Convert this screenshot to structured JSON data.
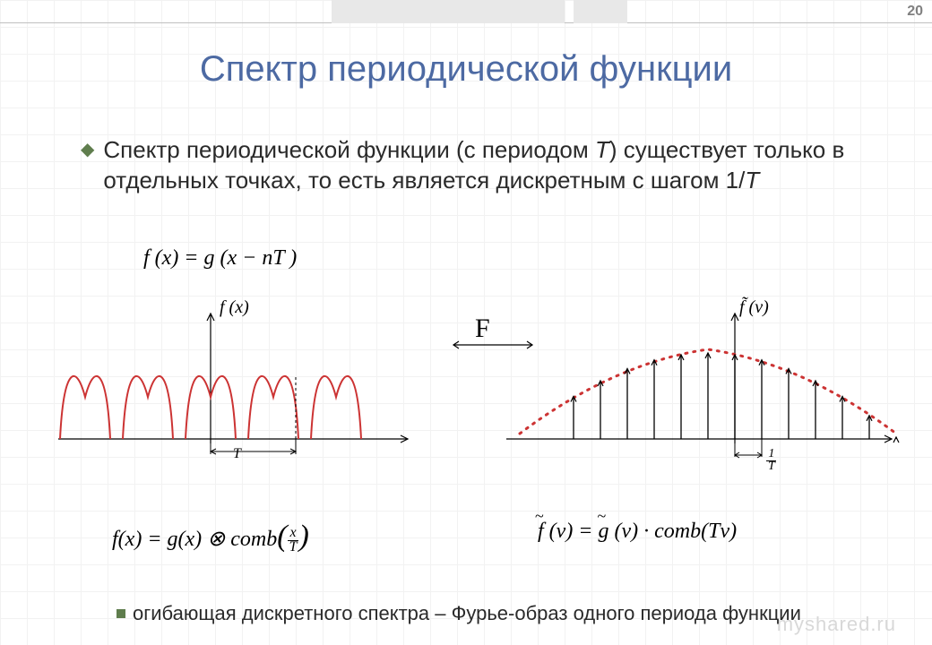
{
  "page_number": "20",
  "title": "Спектр периодической функции",
  "bullet_text_1": "Спектр периодической функции (с периодом ",
  "bullet_text_T": "T",
  "bullet_text_2": ") существует только в отдельных точках, то есть является дискретным с шагом  1/",
  "bullet_text_T2": "T",
  "top_formula": "f (x) = g (x − nT )",
  "fourier_symbol": "F",
  "left_plot": {
    "label": "f (x)",
    "T_label": "T",
    "curve_color": "#cc3333",
    "axis_color": "#000000",
    "x_range": 400,
    "baseline_y": 150,
    "y_top": 10,
    "bumps_centers": [
      35,
      105,
      175,
      245,
      315
    ],
    "bump_width": 56,
    "bump_height": 85
  },
  "right_plot": {
    "label": "f̃ (ν)",
    "oneOverT": {
      "num": "1",
      "den": "T"
    },
    "envelope_color": "#cc3333",
    "arrow_color": "#000000",
    "axis_color": "#000000",
    "x_range": 440,
    "baseline_y": 150,
    "y_top": 10,
    "envelope_peak": 100,
    "n_arrows": 13,
    "arrow_spacing": 30
  },
  "left_formula": "f (x) = g(x) ⊗ comb(x⁄T)",
  "right_formula": "f̃ (ν) = g̃(ν) · comb(Tν)",
  "footer_text": "огибающая дискретного спектра – Фурье-образ одного периода функции",
  "watermark": "myshared.ru",
  "colors": {
    "title": "#4d6aa3",
    "bullet_accent": "#5f7d4d",
    "text": "#2a2a2a",
    "grid": "#f2f2f2"
  }
}
